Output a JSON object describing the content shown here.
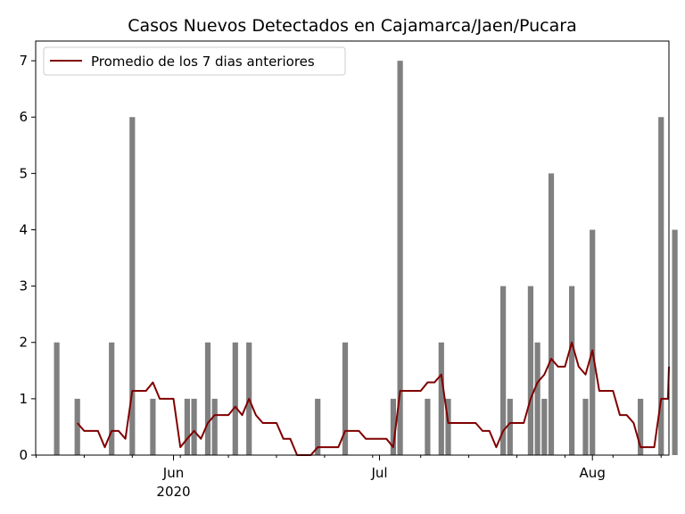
{
  "chart_data": {
    "type": "bar",
    "title": "Casos Nuevos Detectados en Cajamarca/Jaen/Pucara",
    "xlabel": "",
    "ylabel": "",
    "x_start_date": "2020-05-12",
    "ylim": [
      0,
      7.35
    ],
    "yticks": [
      0,
      1,
      2,
      3,
      4,
      5,
      6,
      7
    ],
    "xticks": [
      {
        "date": "2020-06-01",
        "label": "Jun",
        "sublabel": "2020"
      },
      {
        "date": "2020-07-01",
        "label": "Jul",
        "sublabel": ""
      },
      {
        "date": "2020-08-01",
        "label": "Aug",
        "sublabel": ""
      }
    ],
    "grid": false,
    "legend_position": "top-left",
    "colors": {
      "bars": "#808080",
      "line": "#800000"
    },
    "bars": [
      {
        "date": "2020-05-15",
        "value": 2
      },
      {
        "date": "2020-05-18",
        "value": 1
      },
      {
        "date": "2020-05-23",
        "value": 2
      },
      {
        "date": "2020-05-26",
        "value": 6
      },
      {
        "date": "2020-05-29",
        "value": 1
      },
      {
        "date": "2020-06-03",
        "value": 1
      },
      {
        "date": "2020-06-04",
        "value": 1
      },
      {
        "date": "2020-06-06",
        "value": 2
      },
      {
        "date": "2020-06-07",
        "value": 1
      },
      {
        "date": "2020-06-10",
        "value": 2
      },
      {
        "date": "2020-06-12",
        "value": 2
      },
      {
        "date": "2020-06-22",
        "value": 1
      },
      {
        "date": "2020-06-26",
        "value": 2
      },
      {
        "date": "2020-07-03",
        "value": 1
      },
      {
        "date": "2020-07-04",
        "value": 7
      },
      {
        "date": "2020-07-08",
        "value": 1
      },
      {
        "date": "2020-07-10",
        "value": 2
      },
      {
        "date": "2020-07-11",
        "value": 1
      },
      {
        "date": "2020-07-19",
        "value": 3
      },
      {
        "date": "2020-07-20",
        "value": 1
      },
      {
        "date": "2020-07-23",
        "value": 3
      },
      {
        "date": "2020-07-24",
        "value": 2
      },
      {
        "date": "2020-07-25",
        "value": 1
      },
      {
        "date": "2020-07-26",
        "value": 5
      },
      {
        "date": "2020-07-29",
        "value": 3
      },
      {
        "date": "2020-07-31",
        "value": 1
      },
      {
        "date": "2020-08-01",
        "value": 4
      },
      {
        "date": "2020-08-08",
        "value": 1
      },
      {
        "date": "2020-08-11",
        "value": 6
      },
      {
        "date": "2020-08-13",
        "value": 4
      }
    ],
    "series": [
      {
        "name": "Promedio de los 7 dias anteriores",
        "x_start_date": "2020-05-18",
        "values": [
          0.57,
          0.43,
          0.43,
          0.43,
          0.14,
          0.43,
          0.43,
          0.29,
          1.14,
          1.14,
          1.14,
          1.29,
          1.0,
          1.0,
          1.0,
          0.14,
          0.29,
          0.43,
          0.29,
          0.57,
          0.71,
          0.71,
          0.71,
          0.86,
          0.71,
          1.0,
          0.71,
          0.57,
          0.57,
          0.57,
          0.29,
          0.29,
          0.0,
          0.0,
          0.0,
          0.14,
          0.14,
          0.14,
          0.14,
          0.43,
          0.43,
          0.43,
          0.29,
          0.29,
          0.29,
          0.29,
          0.14,
          1.14,
          1.14,
          1.14,
          1.14,
          1.29,
          1.29,
          1.43,
          0.57,
          0.57,
          0.57,
          0.57,
          0.57,
          0.43,
          0.43,
          0.14,
          0.43,
          0.57,
          0.57,
          0.57,
          1.0,
          1.29,
          1.43,
          1.71,
          1.57,
          1.57,
          2.0,
          1.57,
          1.43,
          1.86,
          1.14,
          1.14,
          1.14,
          0.71,
          0.71,
          0.57,
          0.14,
          0.14,
          0.14,
          1.0,
          1.0,
          1.57
        ]
      }
    ]
  }
}
